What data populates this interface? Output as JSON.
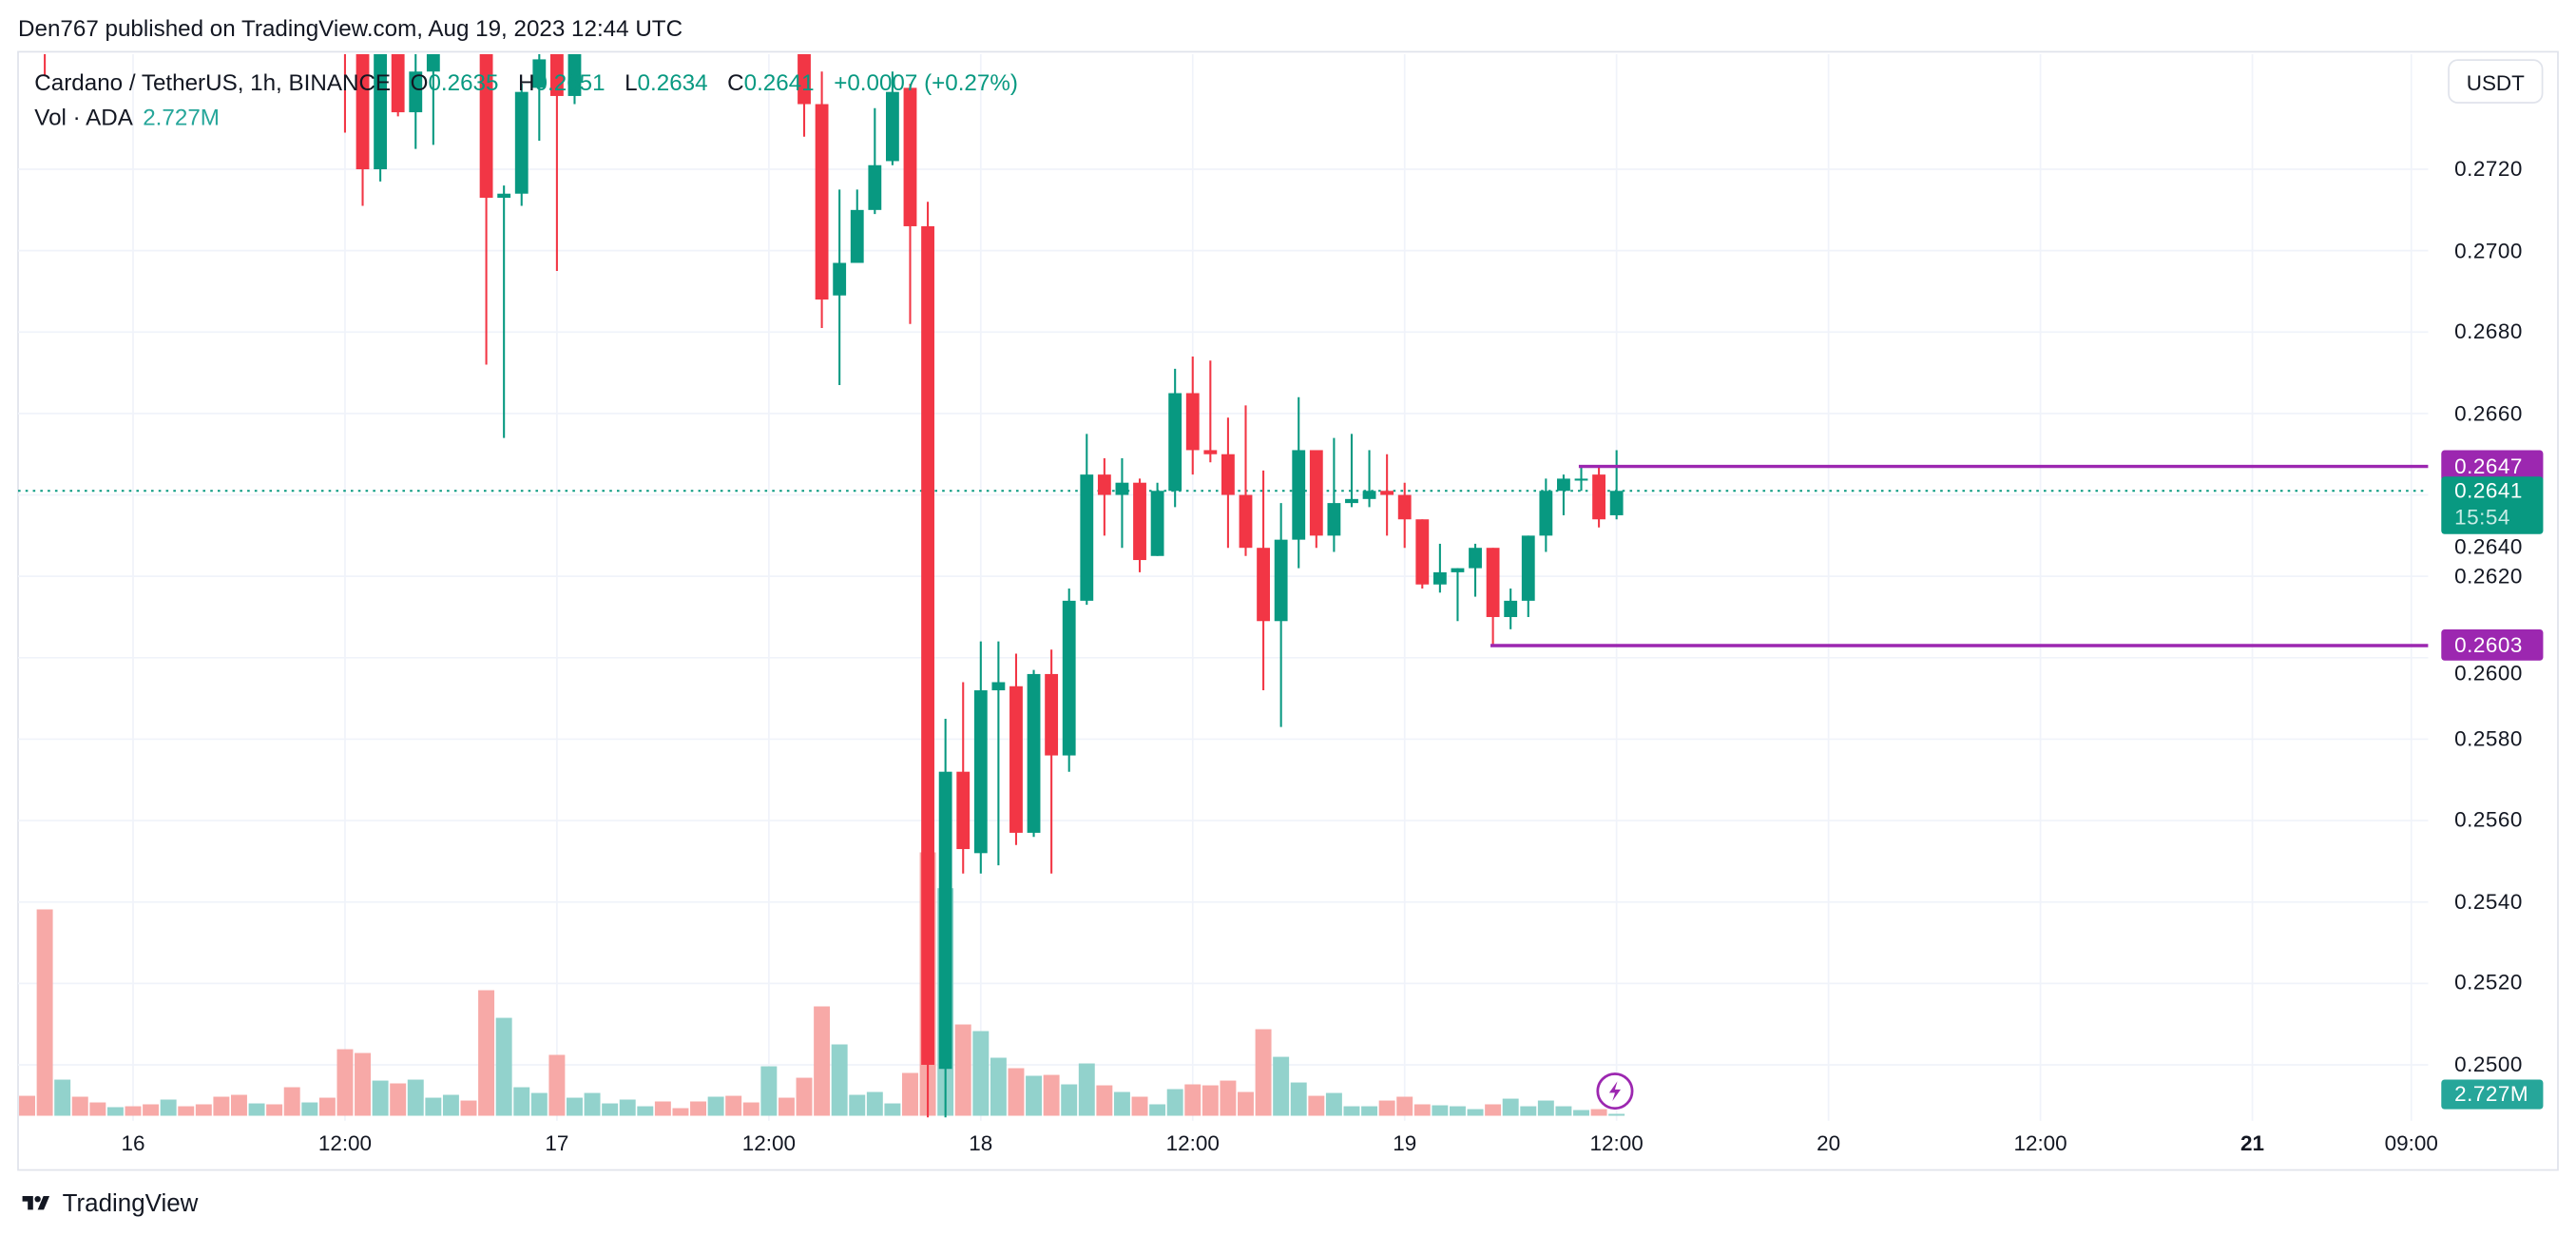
{
  "header": {
    "published": "Den767 published on TradingView.com, Aug 19, 2023 12:44 UTC"
  },
  "legend": {
    "symbol": "Cardano / TetherUS, 1h, BINANCE",
    "o_label": "O",
    "o": "0.2635",
    "h_label": "H",
    "h": "0.2651",
    "l_label": "L",
    "l": "0.2634",
    "c_label": "C",
    "c": "0.2641",
    "change": "+0.0007 (+0.27%)",
    "vol_label": "Vol · ADA",
    "vol": "2.727M"
  },
  "currency_button": "USDT",
  "footer": {
    "logo_text": "TradingView",
    "logo_icon": "tradingview-logo-icon"
  },
  "icons": {
    "alert": "lightning-icon"
  },
  "colors": {
    "up": "#089981",
    "down": "#f23645",
    "vol_up": "#92d2cc",
    "vol_down": "#f7a9a7",
    "line": "#9c27b0",
    "grid": "#f0f3fa"
  },
  "chart_data": {
    "type": "candlestick",
    "interval": "1h",
    "ylim": [
      0.2487,
      0.2748
    ],
    "y_ticks": [
      "0.2720",
      "0.2700",
      "0.2680",
      "0.2660",
      "0.2640",
      "0.2620",
      "0.2600",
      "0.2580",
      "0.2560",
      "0.2540",
      "0.2520",
      "0.2500"
    ],
    "x_ticks": [
      {
        "label": "16",
        "t": "2023-08-16 00:00",
        "bold": false
      },
      {
        "label": "12:00",
        "t": "2023-08-16 12:00",
        "bold": false
      },
      {
        "label": "17",
        "t": "2023-08-17 00:00",
        "bold": false
      },
      {
        "label": "12:00",
        "t": "2023-08-17 12:00",
        "bold": false
      },
      {
        "label": "18",
        "t": "2023-08-18 00:00",
        "bold": false
      },
      {
        "label": "12:00",
        "t": "2023-08-18 12:00",
        "bold": false
      },
      {
        "label": "19",
        "t": "2023-08-19 00:00",
        "bold": false
      },
      {
        "label": "12:00",
        "t": "2023-08-19 12:00",
        "bold": false
      },
      {
        "label": "20",
        "t": "2023-08-20 00:00",
        "bold": false
      },
      {
        "label": "12:00",
        "t": "2023-08-20 12:00",
        "bold": false
      },
      {
        "label": "21",
        "t": "2023-08-21 00:00",
        "bold": true
      },
      {
        "label": "09:00",
        "t": "2023-08-21 09:00",
        "bold": false
      }
    ],
    "last_price": {
      "value": 0.2641,
      "label": "0.2641",
      "countdown": "15:54"
    },
    "volume_badge": "2.727M",
    "horizontal_lines": [
      {
        "price": 0.2647,
        "label": "0.2647",
        "from": "2023-08-19 10:00"
      },
      {
        "price": 0.2603,
        "label": "0.2603",
        "from": "2023-08-19 05:00"
      }
    ],
    "bar_columns": [
      "time",
      "open",
      "high",
      "low",
      "close",
      "volume_M",
      "direction"
    ],
    "bars": [
      [
        "2023-08-15 18:00",
        null,
        null,
        null,
        null,
        28.6,
        "down"
      ],
      [
        "2023-08-15 19:00",
        0.2768,
        0.2775,
        0.2743,
        0.2755,
        295.9,
        "down"
      ],
      [
        "2023-08-15 20:00",
        null,
        null,
        null,
        null,
        51.8,
        "up"
      ],
      [
        "2023-08-15 21:00",
        null,
        null,
        null,
        null,
        27.3,
        "down"
      ],
      [
        "2023-08-15 22:00",
        null,
        null,
        null,
        null,
        19.1,
        "down"
      ],
      [
        "2023-08-15 23:00",
        null,
        null,
        null,
        null,
        12.3,
        "up"
      ],
      [
        "2023-08-16 00:00",
        null,
        null,
        null,
        null,
        13.6,
        "down"
      ],
      [
        "2023-08-16 01:00",
        null,
        null,
        null,
        null,
        16.4,
        "down"
      ],
      [
        "2023-08-16 02:00",
        null,
        null,
        null,
        null,
        23.2,
        "up"
      ],
      [
        "2023-08-16 03:00",
        null,
        null,
        null,
        null,
        13.6,
        "down"
      ],
      [
        "2023-08-16 04:00",
        null,
        null,
        null,
        null,
        16.4,
        "down"
      ],
      [
        "2023-08-16 05:00",
        null,
        null,
        null,
        null,
        27.3,
        "down"
      ],
      [
        "2023-08-16 06:00",
        null,
        null,
        null,
        null,
        30.0,
        "down"
      ],
      [
        "2023-08-16 07:00",
        null,
        null,
        null,
        null,
        17.7,
        "up"
      ],
      [
        "2023-08-16 08:00",
        null,
        null,
        null,
        null,
        16.4,
        "down"
      ],
      [
        "2023-08-16 09:00",
        null,
        null,
        null,
        null,
        40.9,
        "down"
      ],
      [
        "2023-08-16 10:00",
        null,
        null,
        null,
        null,
        19.1,
        "up"
      ],
      [
        "2023-08-16 11:00",
        null,
        null,
        null,
        null,
        25.9,
        "down"
      ],
      [
        "2023-08-16 12:00",
        0.2775,
        0.278,
        0.2729,
        0.2752,
        95.4,
        "down"
      ],
      [
        "2023-08-16 13:00",
        0.2752,
        0.276,
        0.2711,
        0.272,
        90.0,
        "down"
      ],
      [
        "2023-08-16 14:00",
        0.272,
        0.2762,
        0.2717,
        0.2755,
        50.4,
        "up"
      ],
      [
        "2023-08-16 15:00",
        0.2755,
        0.276,
        0.2733,
        0.2734,
        46.4,
        "down"
      ],
      [
        "2023-08-16 16:00",
        0.2734,
        0.2752,
        0.2725,
        0.2744,
        51.8,
        "up"
      ],
      [
        "2023-08-16 17:00",
        0.2744,
        0.2762,
        0.2726,
        0.2756,
        25.9,
        "up"
      ],
      [
        "2023-08-16 18:00",
        null,
        null,
        null,
        null,
        30.0,
        "up"
      ],
      [
        "2023-08-16 19:00",
        null,
        null,
        null,
        null,
        21.8,
        "down"
      ],
      [
        "2023-08-16 20:00",
        0.2765,
        0.277,
        0.2672,
        0.2713,
        180.0,
        "down"
      ],
      [
        "2023-08-16 21:00",
        0.2713,
        0.2716,
        0.2654,
        0.2714,
        140.4,
        "up"
      ],
      [
        "2023-08-16 22:00",
        0.2714,
        0.2741,
        0.2711,
        0.2739,
        40.9,
        "up"
      ],
      [
        "2023-08-16 23:00",
        0.274,
        0.2752,
        0.2727,
        0.2747,
        32.7,
        "up"
      ],
      [
        "2023-08-17 00:00",
        0.276,
        0.2765,
        0.2695,
        0.2738,
        87.3,
        "down"
      ],
      [
        "2023-08-17 01:00",
        0.2738,
        0.2758,
        0.2736,
        0.2752,
        25.9,
        "up"
      ],
      [
        "2023-08-17 02:00",
        null,
        null,
        null,
        null,
        32.7,
        "up"
      ],
      [
        "2023-08-17 03:00",
        null,
        null,
        null,
        null,
        17.7,
        "up"
      ],
      [
        "2023-08-17 04:00",
        null,
        null,
        null,
        null,
        23.2,
        "up"
      ],
      [
        "2023-08-17 05:00",
        null,
        null,
        null,
        null,
        13.6,
        "up"
      ],
      [
        "2023-08-17 06:00",
        null,
        null,
        null,
        null,
        20.5,
        "down"
      ],
      [
        "2023-08-17 07:00",
        null,
        null,
        null,
        null,
        10.9,
        "down"
      ],
      [
        "2023-08-17 08:00",
        null,
        null,
        null,
        null,
        20.5,
        "down"
      ],
      [
        "2023-08-17 09:00",
        null,
        null,
        null,
        null,
        27.3,
        "up"
      ],
      [
        "2023-08-17 10:00",
        null,
        null,
        null,
        null,
        28.6,
        "down"
      ],
      [
        "2023-08-17 11:00",
        null,
        null,
        null,
        null,
        19.1,
        "down"
      ],
      [
        "2023-08-17 12:00",
        null,
        null,
        null,
        null,
        70.9,
        "up"
      ],
      [
        "2023-08-17 13:00",
        null,
        null,
        null,
        null,
        25.9,
        "down"
      ],
      [
        "2023-08-17 14:00",
        0.276,
        0.2765,
        0.2728,
        0.2736,
        54.5,
        "down"
      ],
      [
        "2023-08-17 15:00",
        0.2736,
        0.2744,
        0.2681,
        0.2688,
        156.8,
        "down"
      ],
      [
        "2023-08-17 16:00",
        0.2689,
        0.2715,
        0.2667,
        0.2697,
        102.3,
        "up"
      ],
      [
        "2023-08-17 17:00",
        0.2697,
        0.2715,
        0.2697,
        0.271,
        30.0,
        "up"
      ],
      [
        "2023-08-17 18:00",
        0.271,
        0.2735,
        0.2709,
        0.2721,
        34.1,
        "up"
      ],
      [
        "2023-08-17 19:00",
        0.2722,
        0.2744,
        0.2721,
        0.2739,
        17.7,
        "up"
      ],
      [
        "2023-08-17 20:00",
        0.274,
        0.2741,
        0.2682,
        0.2706,
        61.4,
        "down"
      ],
      [
        "2023-08-17 21:00",
        0.2706,
        0.2712,
        0.2483,
        0.25,
        377.7,
        "down"
      ],
      [
        "2023-08-17 22:00",
        0.2499,
        0.2585,
        0.2482,
        0.2572,
        326.3,
        "up"
      ],
      [
        "2023-08-17 23:00",
        0.2572,
        0.2594,
        0.2547,
        0.2553,
        130.9,
        "down"
      ],
      [
        "2023-08-18 00:00",
        0.2552,
        0.2604,
        0.2547,
        0.2592,
        121.4,
        "up"
      ],
      [
        "2023-08-18 01:00",
        0.2592,
        0.2604,
        0.2549,
        0.2594,
        83.2,
        "up"
      ],
      [
        "2023-08-18 02:00",
        0.2593,
        0.2601,
        0.2554,
        0.2557,
        68.2,
        "down"
      ],
      [
        "2023-08-18 03:00",
        0.2557,
        0.2597,
        0.2556,
        0.2596,
        57.3,
        "up"
      ],
      [
        "2023-08-18 04:00",
        0.2596,
        0.2602,
        0.2547,
        0.2576,
        58.6,
        "down"
      ],
      [
        "2023-08-18 05:00",
        0.2576,
        0.2617,
        0.2572,
        0.2614,
        45.0,
        "up"
      ],
      [
        "2023-08-18 06:00",
        0.2614,
        0.2655,
        0.2613,
        0.2645,
        75.0,
        "up"
      ],
      [
        "2023-08-18 07:00",
        0.2645,
        0.2649,
        0.263,
        0.264,
        43.6,
        "down"
      ],
      [
        "2023-08-18 08:00",
        0.264,
        0.2649,
        0.2627,
        0.2643,
        34.1,
        "up"
      ],
      [
        "2023-08-18 09:00",
        0.2643,
        0.2644,
        0.2621,
        0.2624,
        27.3,
        "down"
      ],
      [
        "2023-08-18 10:00",
        0.2625,
        0.2643,
        0.2625,
        0.2641,
        16.4,
        "up"
      ],
      [
        "2023-08-18 11:00",
        0.2641,
        0.2671,
        0.2637,
        0.2665,
        38.2,
        "up"
      ],
      [
        "2023-08-18 12:00",
        0.2665,
        0.2674,
        0.2645,
        0.2651,
        45.0,
        "down"
      ],
      [
        "2023-08-18 13:00",
        0.2651,
        0.2673,
        0.2648,
        0.265,
        43.6,
        "down"
      ],
      [
        "2023-08-18 14:00",
        0.265,
        0.2659,
        0.2627,
        0.264,
        50.4,
        "down"
      ],
      [
        "2023-08-18 15:00",
        0.264,
        0.2662,
        0.2625,
        0.2627,
        34.1,
        "down"
      ],
      [
        "2023-08-18 16:00",
        0.2627,
        0.2646,
        0.2592,
        0.2609,
        124.1,
        "down"
      ],
      [
        "2023-08-18 17:00",
        0.2609,
        0.2638,
        0.2583,
        0.2629,
        84.5,
        "up"
      ],
      [
        "2023-08-18 18:00",
        0.2629,
        0.2664,
        0.2622,
        0.2651,
        47.7,
        "up"
      ],
      [
        "2023-08-18 19:00",
        0.2651,
        0.2651,
        0.2627,
        0.263,
        28.6,
        "down"
      ],
      [
        "2023-08-18 20:00",
        0.263,
        0.2654,
        0.2626,
        0.2638,
        32.7,
        "up"
      ],
      [
        "2023-08-18 21:00",
        0.2638,
        0.2655,
        0.2637,
        0.2639,
        13.6,
        "up"
      ],
      [
        "2023-08-18 22:00",
        0.2639,
        0.2651,
        0.2637,
        0.2641,
        13.6,
        "up"
      ],
      [
        "2023-08-18 23:00",
        0.2641,
        0.265,
        0.263,
        0.264,
        21.8,
        "down"
      ],
      [
        "2023-08-19 00:00",
        0.264,
        0.2643,
        0.2627,
        0.2634,
        27.3,
        "down"
      ],
      [
        "2023-08-19 01:00",
        0.2634,
        0.2634,
        0.2617,
        0.2618,
        16.4,
        "down"
      ],
      [
        "2023-08-19 02:00",
        0.2618,
        0.2628,
        0.2616,
        0.2621,
        15.0,
        "up"
      ],
      [
        "2023-08-19 03:00",
        0.2621,
        0.2622,
        0.2609,
        0.2622,
        13.6,
        "up"
      ],
      [
        "2023-08-19 04:00",
        0.2622,
        0.2628,
        0.2615,
        0.2627,
        9.5,
        "up"
      ],
      [
        "2023-08-19 05:00",
        0.2627,
        0.2627,
        0.2603,
        0.261,
        16.4,
        "down"
      ],
      [
        "2023-08-19 06:00",
        0.261,
        0.2617,
        0.2607,
        0.2614,
        24.5,
        "up"
      ],
      [
        "2023-08-19 07:00",
        0.2614,
        0.263,
        0.261,
        0.263,
        13.6,
        "up"
      ],
      [
        "2023-08-19 08:00",
        0.263,
        0.2644,
        0.2626,
        0.2641,
        21.8,
        "up"
      ],
      [
        "2023-08-19 09:00",
        0.2641,
        0.2645,
        0.2635,
        0.2644,
        13.6,
        "up"
      ],
      [
        "2023-08-19 10:00",
        0.2644,
        0.2647,
        0.2641,
        0.2644,
        8.2,
        "up"
      ],
      [
        "2023-08-19 11:00",
        0.2645,
        0.2647,
        0.2632,
        0.2634,
        9.5,
        "down"
      ],
      [
        "2023-08-19 12:00",
        0.2635,
        0.2651,
        0.2634,
        0.2641,
        2.727,
        "up"
      ]
    ]
  }
}
